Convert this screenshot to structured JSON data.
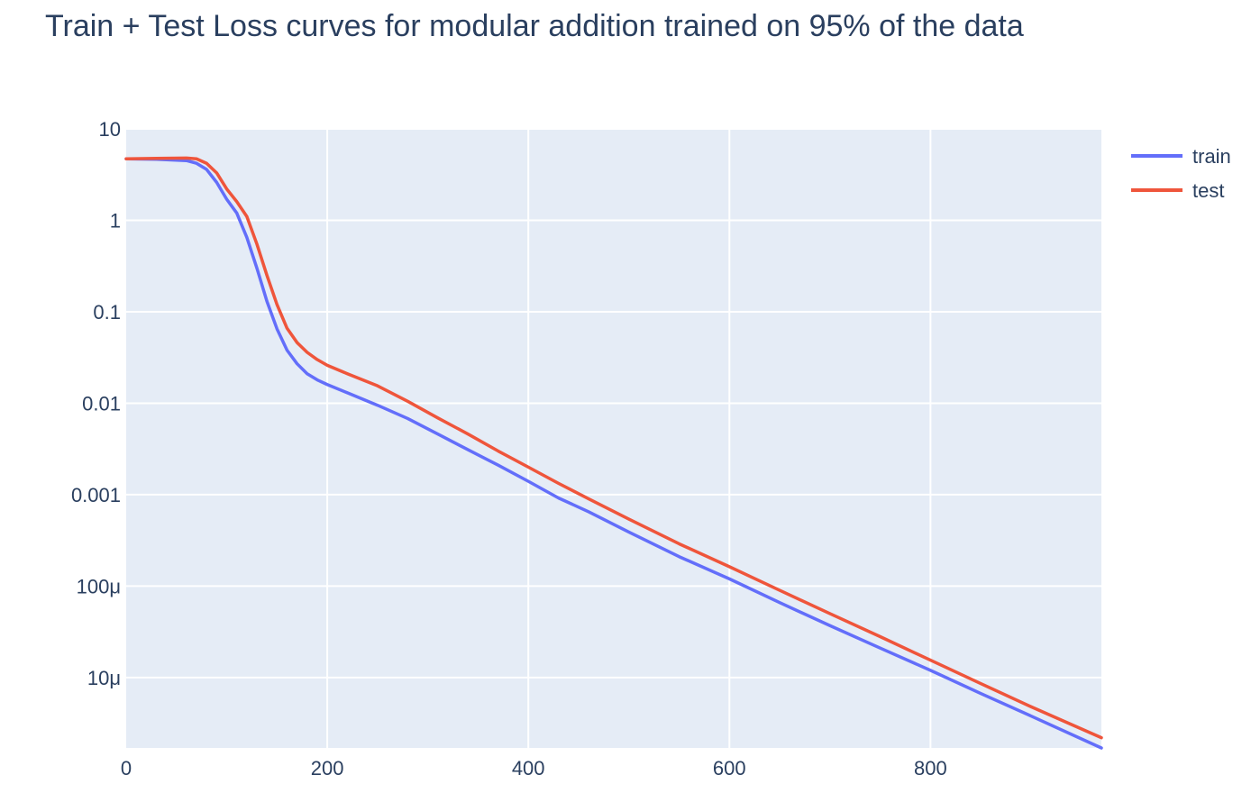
{
  "chart_data": {
    "type": "line",
    "title": "Train + Test Loss curves for modular addition trained on 95% of the data",
    "xlabel": "",
    "ylabel": "",
    "y_scale": "log",
    "xlim": [
      0,
      970
    ],
    "ylim": [
      1.7e-06,
      10
    ],
    "x_ticks": [
      0,
      200,
      400,
      600,
      800
    ],
    "y_ticks": [
      {
        "value": 10,
        "label": "10"
      },
      {
        "value": 1,
        "label": "1"
      },
      {
        "value": 0.1,
        "label": "0.1"
      },
      {
        "value": 0.01,
        "label": "0.01"
      },
      {
        "value": 0.001,
        "label": "0.001"
      },
      {
        "value": 0.0001,
        "label": "100μ"
      },
      {
        "value": 1e-05,
        "label": "10μ"
      }
    ],
    "grid": true,
    "legend_position": "top-right",
    "plot_background": "#e5ecf6",
    "series": [
      {
        "name": "train",
        "color": "#636efa",
        "x": [
          0,
          30,
          60,
          70,
          80,
          90,
          100,
          110,
          120,
          130,
          140,
          150,
          160,
          170,
          180,
          190,
          200,
          220,
          250,
          280,
          310,
          340,
          370,
          400,
          430,
          460,
          500,
          550,
          600,
          650,
          700,
          750,
          800,
          850,
          900,
          970
        ],
        "y": [
          4.7,
          4.65,
          4.5,
          4.2,
          3.6,
          2.6,
          1.7,
          1.2,
          0.65,
          0.3,
          0.13,
          0.065,
          0.038,
          0.027,
          0.021,
          0.018,
          0.016,
          0.013,
          0.0095,
          0.0068,
          0.0046,
          0.0031,
          0.0021,
          0.0014,
          0.00092,
          0.00065,
          0.00039,
          0.00021,
          0.00012,
          6.6e-05,
          3.7e-05,
          2.1e-05,
          1.2e-05,
          6.7e-06,
          3.8e-06,
          1.7e-06
        ]
      },
      {
        "name": "test",
        "color": "#ef553b",
        "x": [
          0,
          30,
          60,
          70,
          80,
          90,
          100,
          110,
          120,
          130,
          140,
          150,
          160,
          170,
          180,
          190,
          200,
          220,
          250,
          280,
          310,
          340,
          370,
          400,
          430,
          460,
          500,
          550,
          600,
          650,
          700,
          750,
          800,
          850,
          900,
          970
        ],
        "y": [
          4.7,
          4.75,
          4.8,
          4.7,
          4.2,
          3.3,
          2.2,
          1.6,
          1.1,
          0.55,
          0.25,
          0.12,
          0.066,
          0.046,
          0.036,
          0.03,
          0.026,
          0.021,
          0.0155,
          0.0105,
          0.0069,
          0.0046,
          0.003,
          0.002,
          0.00133,
          0.0009,
          0.00054,
          0.00029,
          0.000163,
          9e-05,
          5e-05,
          2.8e-05,
          1.55e-05,
          8.6e-06,
          4.8e-06,
          2.2e-06
        ]
      }
    ]
  }
}
